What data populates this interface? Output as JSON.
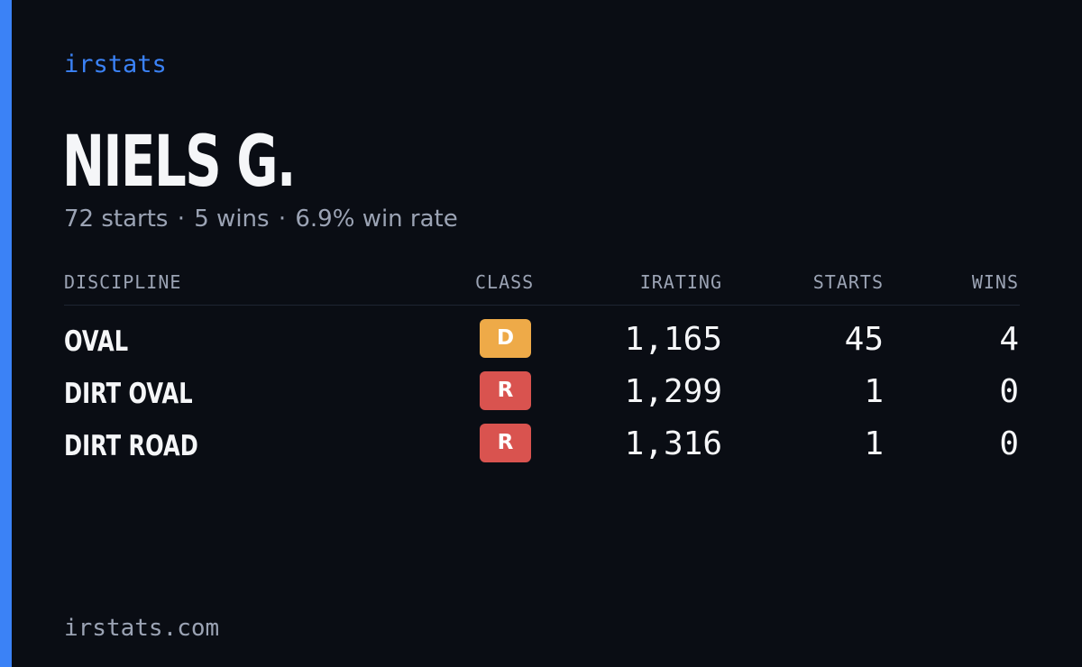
{
  "brand": "irstats",
  "player": {
    "name": "NIELS G.",
    "starts_text": "72 starts",
    "wins_text": "5 wins",
    "win_rate_text": "6.9% win rate",
    "separator": "·"
  },
  "table": {
    "headers": {
      "discipline": "DISCIPLINE",
      "class": "CLASS",
      "irating": "IRATING",
      "starts": "STARTS",
      "wins": "WINS"
    },
    "rows": [
      {
        "discipline": "OVAL",
        "class": "D",
        "class_color": "#eeaa48",
        "irating": "1,165",
        "starts": "45",
        "wins": "4"
      },
      {
        "discipline": "DIRT OVAL",
        "class": "R",
        "class_color": "#d9534f",
        "irating": "1,299",
        "starts": "1",
        "wins": "0"
      },
      {
        "discipline": "DIRT ROAD",
        "class": "R",
        "class_color": "#d9534f",
        "irating": "1,316",
        "starts": "1",
        "wins": "0"
      }
    ]
  },
  "footer": {
    "domain": "irstats.com"
  },
  "colors": {
    "background": "#0a0d14",
    "accent": "#3b82f6",
    "text_primary": "#f5f6f8",
    "text_secondary": "#9ba3b4"
  }
}
